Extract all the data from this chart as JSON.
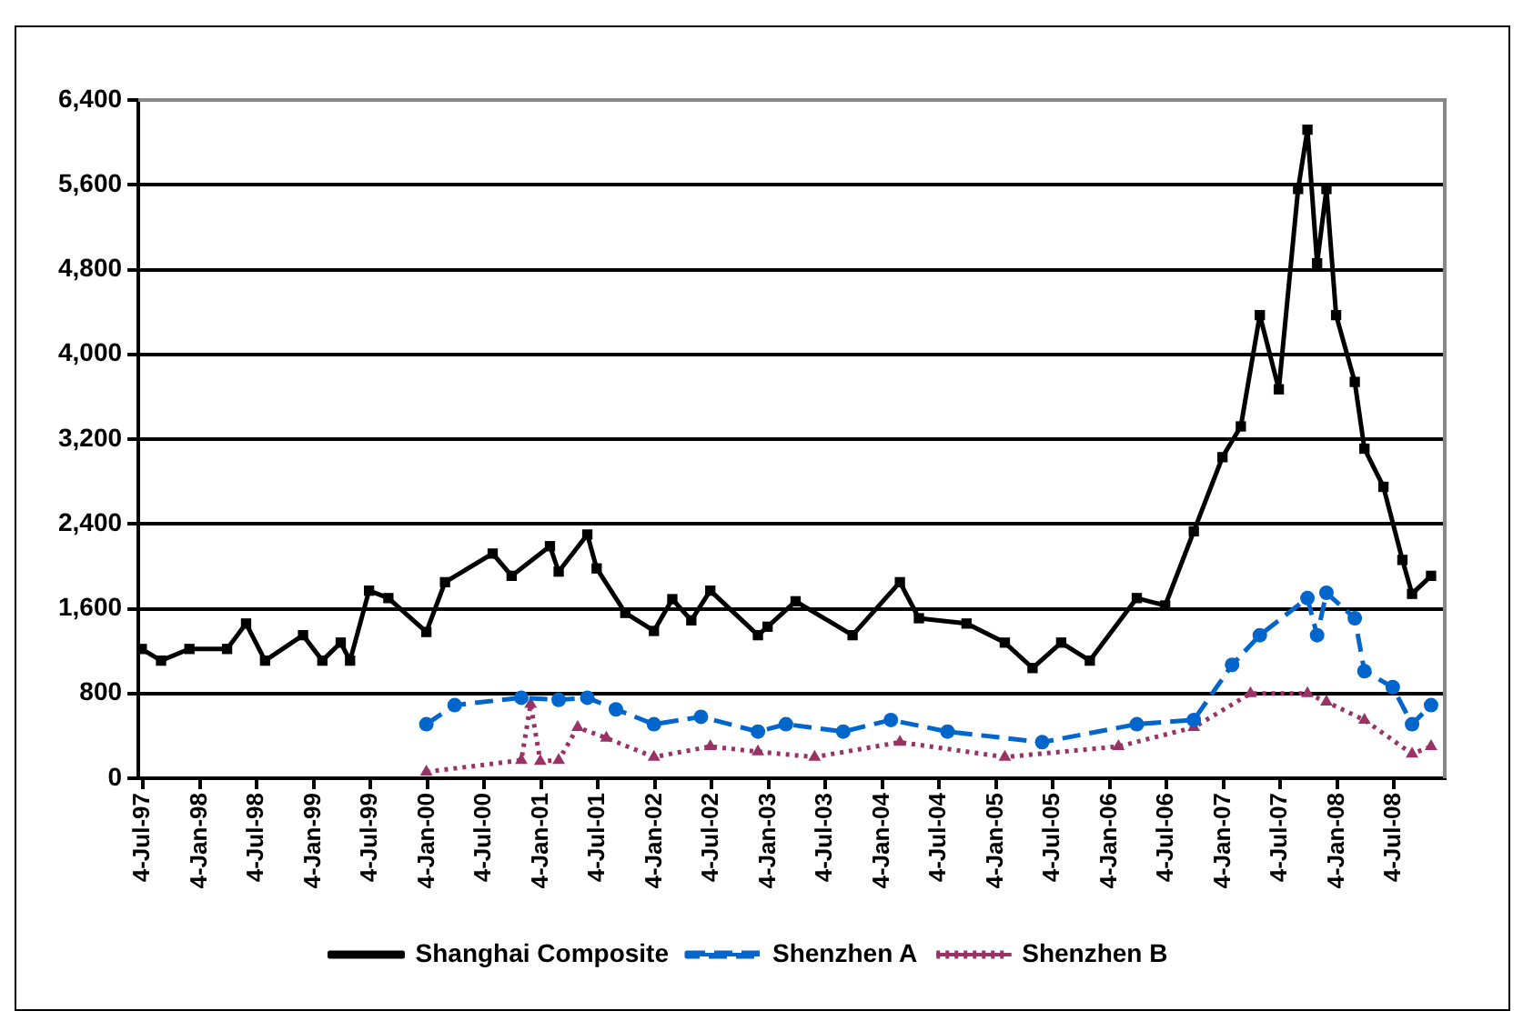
{
  "chart_data": {
    "type": "line",
    "xlim": [
      "1997-06-20",
      "2008-12-15"
    ],
    "xticks": [
      {
        "value": "1997-07-04",
        "label": "4-Jul-97"
      },
      {
        "value": "1998-01-04",
        "label": "4-Jan-98"
      },
      {
        "value": "1998-07-04",
        "label": "4-Jul-98"
      },
      {
        "value": "1999-01-04",
        "label": "4-Jan-99"
      },
      {
        "value": "1999-07-04",
        "label": "4-Jul-99"
      },
      {
        "value": "2000-01-04",
        "label": "4-Jan-00"
      },
      {
        "value": "2000-07-04",
        "label": "4-Jul-00"
      },
      {
        "value": "2001-01-04",
        "label": "4-Jan-01"
      },
      {
        "value": "2001-07-04",
        "label": "4-Jul-01"
      },
      {
        "value": "2002-01-04",
        "label": "4-Jan-02"
      },
      {
        "value": "2002-07-04",
        "label": "4-Jul-02"
      },
      {
        "value": "2003-01-04",
        "label": "4-Jan-03"
      },
      {
        "value": "2003-07-04",
        "label": "4-Jul-03"
      },
      {
        "value": "2004-01-04",
        "label": "4-Jan-04"
      },
      {
        "value": "2004-07-04",
        "label": "4-Jul-04"
      },
      {
        "value": "2005-01-04",
        "label": "4-Jan-05"
      },
      {
        "value": "2005-07-04",
        "label": "4-Jul-05"
      },
      {
        "value": "2006-01-04",
        "label": "4-Jan-06"
      },
      {
        "value": "2006-07-04",
        "label": "4-Jul-06"
      },
      {
        "value": "2007-01-04",
        "label": "4-Jan-07"
      },
      {
        "value": "2007-07-04",
        "label": "4-Jul-07"
      },
      {
        "value": "2008-01-04",
        "label": "4-Jan-08"
      },
      {
        "value": "2008-07-04",
        "label": "4-Jul-08"
      }
    ],
    "ylim": [
      0,
      6400
    ],
    "yticks": [
      0,
      800,
      {
        "value": 1600,
        "label": "1,600"
      },
      {
        "value": 2400,
        "label": "2,400"
      },
      {
        "value": 3200,
        "label": "3,200"
      },
      {
        "value": 4000,
        "label": "4,000"
      },
      {
        "value": 4800,
        "label": "4,800"
      },
      {
        "value": 5600,
        "label": "5,600"
      },
      {
        "value": 6400,
        "label": "6,400"
      }
    ],
    "grid": "y",
    "legend": "bottom",
    "series": [
      {
        "name": "Shanghai Composite",
        "color": "#000000",
        "marker": "square",
        "line_style": "solid",
        "x": [
          "1997-07",
          "1997-09",
          "1997-12",
          "1998-04",
          "1998-06",
          "1998-08",
          "1998-12",
          "1999-02",
          "1999-04",
          "1999-05",
          "1999-07",
          "1999-09",
          "2000-01",
          "2000-03",
          "2000-08",
          "2000-10",
          "2001-02",
          "2001-03",
          "2001-06",
          "2001-07",
          "2001-10",
          "2002-01",
          "2002-03",
          "2002-05",
          "2002-07",
          "2002-12",
          "2003-01",
          "2003-04",
          "2003-10",
          "2004-03",
          "2004-05",
          "2004-10",
          "2005-02",
          "2005-05",
          "2005-08",
          "2005-11",
          "2006-04",
          "2006-07",
          "2006-10",
          "2007-01",
          "2007-03",
          "2007-05",
          "2007-07",
          "2007-09",
          "2007-10",
          "2007-11",
          "2007-12",
          "2008-01",
          "2008-03",
          "2008-04",
          "2008-06",
          "2008-08",
          "2008-09",
          "2008-11"
        ],
        "values": [
          1220,
          1110,
          1220,
          1220,
          1460,
          1110,
          1350,
          1110,
          1280,
          1110,
          1770,
          1700,
          1380,
          1850,
          2120,
          1910,
          2190,
          1950,
          2300,
          1980,
          1560,
          1390,
          1690,
          1490,
          1770,
          1350,
          1430,
          1670,
          1350,
          1850,
          1510,
          1460,
          1280,
          1040,
          1280,
          1110,
          1700,
          1630,
          2330,
          3030,
          3320,
          4370,
          3670,
          5560,
          6120,
          4860,
          5560,
          4370,
          3740,
          3110,
          2750,
          2060,
          1740,
          1910
        ]
      },
      {
        "name": "Shenzhen A",
        "color": "#0066cc",
        "marker": "circle",
        "line_style": "dashed",
        "x": [
          "2000-01",
          "2000-04",
          "2000-11",
          "2001-03",
          "2001-06",
          "2001-09",
          "2002-01",
          "2002-06",
          "2002-12",
          "2003-03",
          "2003-09",
          "2004-02",
          "2004-08",
          "2005-06",
          "2006-04",
          "2006-10",
          "2007-02",
          "2007-05",
          "2007-10",
          "2007-11",
          "2007-12",
          "2008-03",
          "2008-04",
          "2008-07",
          "2008-09",
          "2008-11"
        ],
        "values": [
          510,
          690,
          760,
          740,
          760,
          650,
          510,
          580,
          440,
          510,
          440,
          550,
          440,
          340,
          510,
          550,
          1070,
          1350,
          1700,
          1350,
          1750,
          1510,
          1010,
          860,
          510,
          690
        ]
      },
      {
        "name": "Shenzhen B",
        "color": "#993366",
        "marker": "triangle",
        "line_style": "dotted",
        "x": [
          "2000-01",
          "2000-11",
          "2000-12",
          "2001-01",
          "2001-03",
          "2001-05",
          "2001-08",
          "2002-01",
          "2002-07",
          "2002-12",
          "2003-06",
          "2004-03",
          "2005-02",
          "2006-02",
          "2006-10",
          "2007-04",
          "2007-10",
          "2007-12",
          "2008-04",
          "2008-09",
          "2008-11"
        ],
        "values": [
          60,
          170,
          700,
          160,
          170,
          480,
          380,
          200,
          300,
          250,
          200,
          340,
          200,
          300,
          480,
          800,
          800,
          720,
          550,
          230,
          300
        ]
      }
    ]
  }
}
